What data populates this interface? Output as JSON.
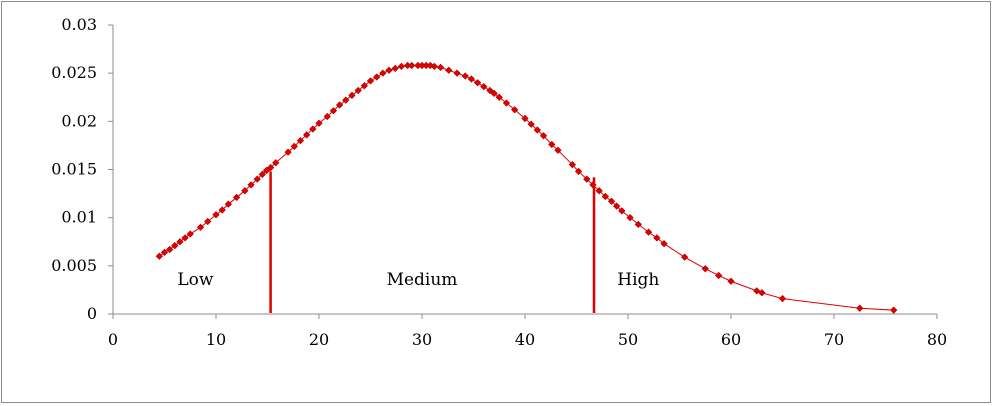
{
  "chart_data": {
    "type": "scatter",
    "title": "",
    "xlabel": "",
    "ylabel": "",
    "xlim": [
      0,
      80
    ],
    "ylim": [
      0,
      0.03
    ],
    "x_ticks": [
      0,
      10,
      20,
      30,
      40,
      50,
      60,
      70,
      80
    ],
    "y_ticks": [
      0,
      0.005,
      0.01,
      0.015,
      0.02,
      0.025,
      0.03
    ],
    "x_tick_labels": [
      "0",
      "10",
      "20",
      "30",
      "40",
      "50",
      "60",
      "70",
      "80"
    ],
    "y_tick_labels": [
      "0",
      "0.005",
      "0.01",
      "0.015",
      "0.02",
      "0.025",
      "0.03"
    ],
    "grid": false,
    "legend": "none",
    "distribution": {
      "mean": 30.5,
      "sd": 15.5
    },
    "series": [
      {
        "color": "#e00000",
        "x": [
          4.5,
          5.0,
          5.5,
          6.0,
          6.5,
          7.0,
          7.5,
          8.5,
          9.2,
          10.0,
          10.6,
          11.2,
          12.0,
          12.8,
          13.4,
          14.0,
          14.5,
          14.9,
          15.3,
          15.8,
          17.0,
          17.6,
          18.2,
          18.8,
          19.4,
          20.0,
          20.8,
          21.4,
          22.0,
          22.6,
          23.2,
          23.8,
          24.4,
          25.0,
          25.6,
          26.2,
          26.8,
          27.4,
          28.0,
          28.6,
          29.0,
          29.6,
          30.0,
          30.4,
          30.8,
          31.2,
          31.8,
          32.6,
          33.4,
          34.2,
          34.8,
          35.4,
          36.0,
          36.6,
          37.0,
          37.5,
          38.2,
          39.0,
          40.0,
          40.6,
          41.2,
          41.8,
          42.6,
          43.2,
          44.6,
          45.2,
          46.0,
          46.6,
          47.2,
          47.8,
          48.4,
          48.9,
          49.4,
          50.2,
          51.0,
          52.0,
          52.8,
          53.5,
          55.5,
          57.5,
          58.8,
          60.0,
          62.5,
          63.0,
          65.0,
          72.5,
          75.8
        ],
        "y": [
          0.006,
          0.0064,
          0.0067,
          0.0071,
          0.0075,
          0.0079,
          0.0083,
          0.009,
          0.0096,
          0.0103,
          0.0108,
          0.0114,
          0.0121,
          0.0128,
          0.0134,
          0.014,
          0.0145,
          0.0149,
          0.0152,
          0.0157,
          0.0168,
          0.0174,
          0.018,
          0.0186,
          0.0192,
          0.0198,
          0.0205,
          0.0211,
          0.0217,
          0.0222,
          0.0227,
          0.0232,
          0.0237,
          0.0242,
          0.0246,
          0.025,
          0.0253,
          0.0255,
          0.0257,
          0.0258,
          0.0258,
          0.0258,
          0.0258,
          0.0258,
          0.0258,
          0.0257,
          0.0256,
          0.0253,
          0.025,
          0.0247,
          0.0244,
          0.024,
          0.0236,
          0.0232,
          0.0229,
          0.0225,
          0.0219,
          0.0212,
          0.0203,
          0.0197,
          0.0191,
          0.0185,
          0.0176,
          0.017,
          0.0155,
          0.0148,
          0.014,
          0.0134,
          0.0128,
          0.0122,
          0.0117,
          0.0112,
          0.0107,
          0.01,
          0.0093,
          0.0085,
          0.0079,
          0.0073,
          0.0059,
          0.0047,
          0.004,
          0.0034,
          0.0024,
          0.0022,
          0.0016,
          0.0006,
          0.0004
        ]
      }
    ],
    "thresholds": [
      {
        "x": 15.3,
        "y_top": 0.0148
      },
      {
        "x": 46.7,
        "y_top": 0.0142
      }
    ],
    "annotations": [
      {
        "text": "Low",
        "x": 8.0,
        "y": 0.003
      },
      {
        "text": "Medium",
        "x": 30.0,
        "y": 0.003
      },
      {
        "text": "High",
        "x": 51.0,
        "y": 0.003
      }
    ]
  }
}
